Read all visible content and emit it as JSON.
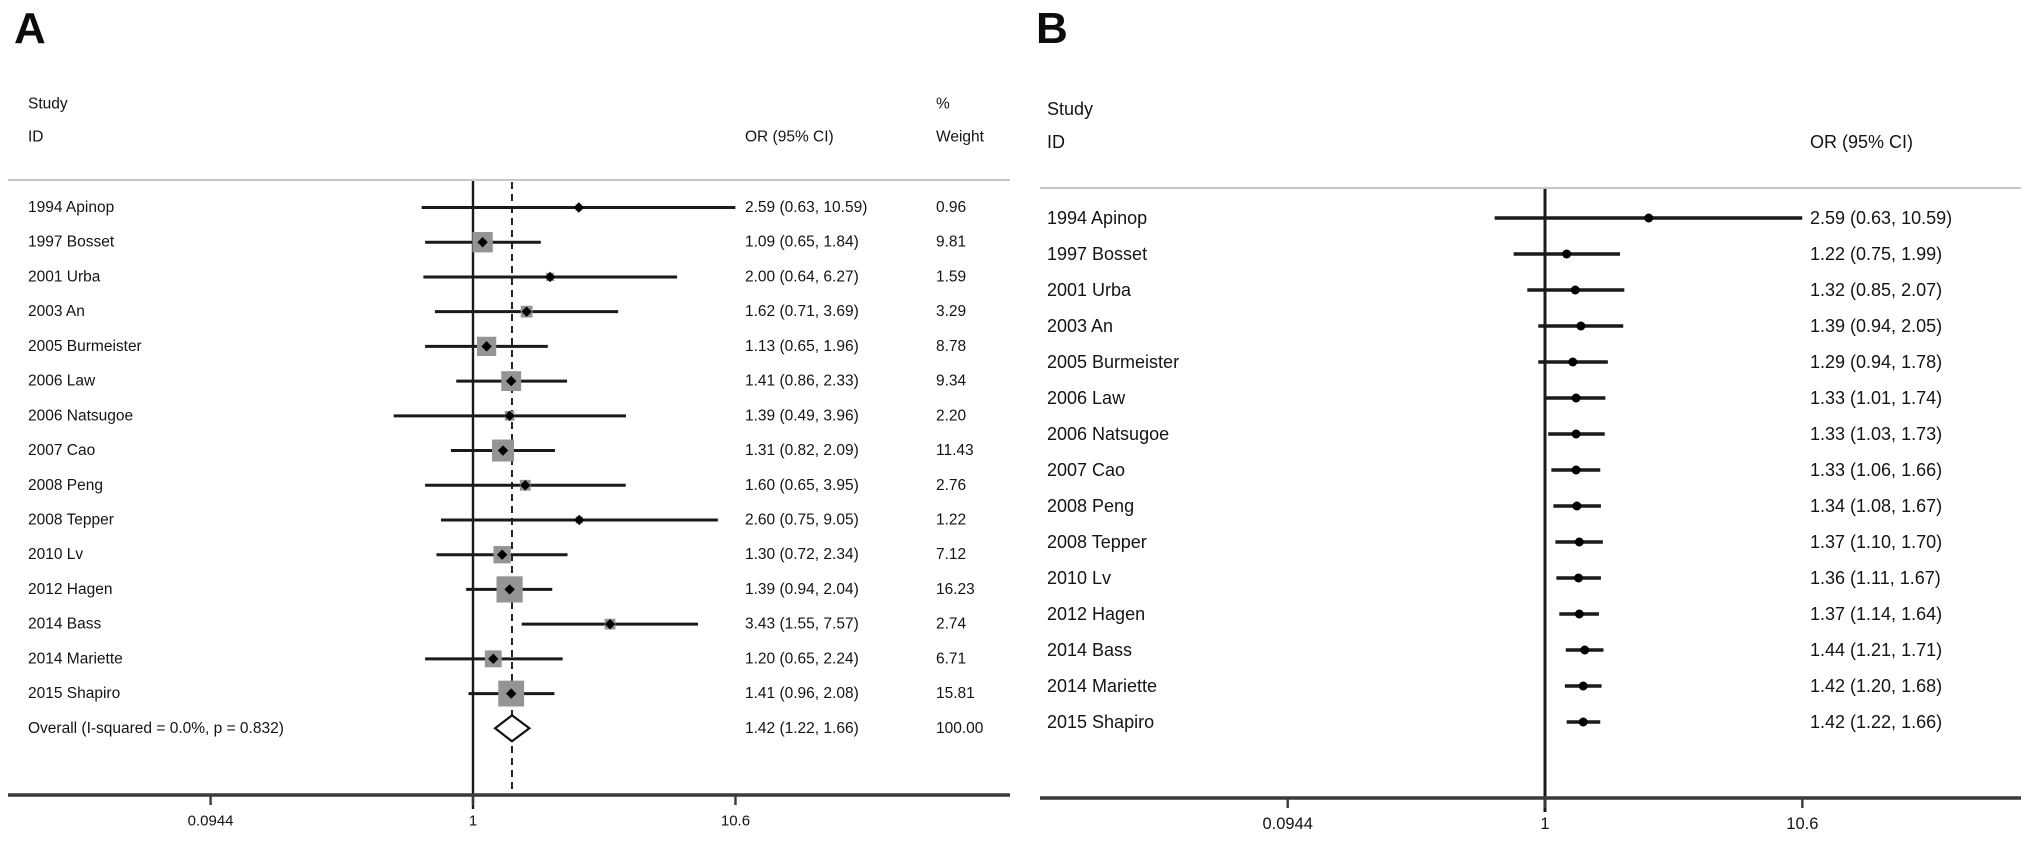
{
  "colors": {
    "background": "#ffffff",
    "text": "#141414",
    "ci_line": "#1a1a1a",
    "weight_box": "#949494",
    "point_marker": "#000000",
    "axis_line": "#3a3a3a",
    "separator_line": "#b3b3b3",
    "overall_dashed_line": "#222222",
    "diamond_fill": "#ffffff",
    "diamond_stroke": "#111111"
  },
  "chart_data": [
    {
      "type": "forest",
      "title": "A",
      "x_scale": "log",
      "x_ticks": [
        0.0944,
        1,
        10.6
      ],
      "x_tick_labels": [
        "0.0944",
        "1",
        "10.6"
      ],
      "null_line": 1,
      "overall_dashed_at": 1.42,
      "headers": {
        "study_line1": "Study",
        "study_line2": "ID",
        "or": "OR (95% CI)",
        "weight_line1": "%",
        "weight_line2": "Weight"
      },
      "studies": [
        {
          "id": "1994 Apinop",
          "or": 2.59,
          "ci_low": 0.63,
          "ci_high": 10.59,
          "or_text": "2.59 (0.63, 10.59)",
          "weight": 0.96,
          "weight_text": "0.96"
        },
        {
          "id": "1997 Bosset",
          "or": 1.09,
          "ci_low": 0.65,
          "ci_high": 1.84,
          "or_text": "1.09 (0.65, 1.84)",
          "weight": 9.81,
          "weight_text": "9.81"
        },
        {
          "id": "2001 Urba",
          "or": 2.0,
          "ci_low": 0.64,
          "ci_high": 6.27,
          "or_text": "2.00 (0.64, 6.27)",
          "weight": 1.59,
          "weight_text": "1.59"
        },
        {
          "id": "2003 An",
          "or": 1.62,
          "ci_low": 0.71,
          "ci_high": 3.69,
          "or_text": "1.62 (0.71, 3.69)",
          "weight": 3.29,
          "weight_text": "3.29"
        },
        {
          "id": "2005 Burmeister",
          "or": 1.13,
          "ci_low": 0.65,
          "ci_high": 1.96,
          "or_text": "1.13 (0.65, 1.96)",
          "weight": 8.78,
          "weight_text": "8.78"
        },
        {
          "id": "2006 Law",
          "or": 1.41,
          "ci_low": 0.86,
          "ci_high": 2.33,
          "or_text": "1.41 (0.86, 2.33)",
          "weight": 9.34,
          "weight_text": "9.34"
        },
        {
          "id": "2006 Natsugoe",
          "or": 1.39,
          "ci_low": 0.49,
          "ci_high": 3.96,
          "or_text": "1.39 (0.49, 3.96)",
          "weight": 2.2,
          "weight_text": "2.20"
        },
        {
          "id": "2007 Cao",
          "or": 1.31,
          "ci_low": 0.82,
          "ci_high": 2.09,
          "or_text": "1.31 (0.82, 2.09)",
          "weight": 11.43,
          "weight_text": "11.43"
        },
        {
          "id": "2008 Peng",
          "or": 1.6,
          "ci_low": 0.65,
          "ci_high": 3.95,
          "or_text": "1.60 (0.65, 3.95)",
          "weight": 2.76,
          "weight_text": "2.76"
        },
        {
          "id": "2008 Tepper",
          "or": 2.6,
          "ci_low": 0.75,
          "ci_high": 9.05,
          "or_text": "2.60 (0.75, 9.05)",
          "weight": 1.22,
          "weight_text": "1.22"
        },
        {
          "id": "2010 Lv",
          "or": 1.3,
          "ci_low": 0.72,
          "ci_high": 2.34,
          "or_text": "1.30 (0.72, 2.34)",
          "weight": 7.12,
          "weight_text": "7.12"
        },
        {
          "id": "2012 Hagen",
          "or": 1.39,
          "ci_low": 0.94,
          "ci_high": 2.04,
          "or_text": "1.39 (0.94, 2.04)",
          "weight": 16.23,
          "weight_text": "16.23"
        },
        {
          "id": "2014 Bass",
          "or": 3.43,
          "ci_low": 1.55,
          "ci_high": 7.57,
          "or_text": "3.43 (1.55, 7.57)",
          "weight": 2.74,
          "weight_text": "2.74"
        },
        {
          "id": "2014 Mariette",
          "or": 1.2,
          "ci_low": 0.65,
          "ci_high": 2.24,
          "or_text": "1.20 (0.65, 2.24)",
          "weight": 6.71,
          "weight_text": "6.71"
        },
        {
          "id": "2015 Shapiro",
          "or": 1.41,
          "ci_low": 0.96,
          "ci_high": 2.08,
          "or_text": "1.41 (0.96, 2.08)",
          "weight": 15.81,
          "weight_text": "15.81"
        }
      ],
      "overall": {
        "id": "Overall  (I-squared = 0.0%, p = 0.832)",
        "or": 1.42,
        "ci_low": 1.22,
        "ci_high": 1.66,
        "or_text": "1.42 (1.22, 1.66)",
        "weight_text": "100.00"
      }
    },
    {
      "type": "forest",
      "title": "B",
      "x_scale": "log",
      "x_ticks": [
        0.0944,
        1,
        10.6
      ],
      "x_tick_labels": [
        "0.0944",
        "1",
        "10.6"
      ],
      "null_line": 1,
      "headers": {
        "study_line1": "Study",
        "study_line2": "ID",
        "or": "OR (95% CI)"
      },
      "studies": [
        {
          "id": "1994 Apinop",
          "or": 2.59,
          "ci_low": 0.63,
          "ci_high": 10.59,
          "or_text": "2.59 (0.63, 10.59)"
        },
        {
          "id": "1997 Bosset",
          "or": 1.22,
          "ci_low": 0.75,
          "ci_high": 1.99,
          "or_text": "1.22 (0.75, 1.99)"
        },
        {
          "id": "2001 Urba",
          "or": 1.32,
          "ci_low": 0.85,
          "ci_high": 2.07,
          "or_text": "1.32 (0.85, 2.07)"
        },
        {
          "id": "2003 An",
          "or": 1.39,
          "ci_low": 0.94,
          "ci_high": 2.05,
          "or_text": "1.39 (0.94, 2.05)"
        },
        {
          "id": "2005 Burmeister",
          "or": 1.29,
          "ci_low": 0.94,
          "ci_high": 1.78,
          "or_text": "1.29 (0.94, 1.78)"
        },
        {
          "id": "2006 Law",
          "or": 1.33,
          "ci_low": 1.01,
          "ci_high": 1.74,
          "or_text": "1.33 (1.01, 1.74)"
        },
        {
          "id": "2006 Natsugoe",
          "or": 1.33,
          "ci_low": 1.03,
          "ci_high": 1.73,
          "or_text": "1.33 (1.03, 1.73)"
        },
        {
          "id": "2007 Cao",
          "or": 1.33,
          "ci_low": 1.06,
          "ci_high": 1.66,
          "or_text": "1.33 (1.06, 1.66)"
        },
        {
          "id": "2008 Peng",
          "or": 1.34,
          "ci_low": 1.08,
          "ci_high": 1.67,
          "or_text": "1.34 (1.08, 1.67)"
        },
        {
          "id": "2008 Tepper",
          "or": 1.37,
          "ci_low": 1.1,
          "ci_high": 1.7,
          "or_text": "1.37 (1.10, 1.70)"
        },
        {
          "id": "2010 Lv",
          "or": 1.36,
          "ci_low": 1.11,
          "ci_high": 1.67,
          "or_text": "1.36 (1.11, 1.67)"
        },
        {
          "id": "2012 Hagen",
          "or": 1.37,
          "ci_low": 1.14,
          "ci_high": 1.64,
          "or_text": "1.37 (1.14, 1.64)"
        },
        {
          "id": "2014 Bass",
          "or": 1.44,
          "ci_low": 1.21,
          "ci_high": 1.71,
          "or_text": "1.44 (1.21, 1.71)"
        },
        {
          "id": "2014 Mariette",
          "or": 1.42,
          "ci_low": 1.2,
          "ci_high": 1.68,
          "or_text": "1.42 (1.20, 1.68)"
        },
        {
          "id": "2015 Shapiro",
          "or": 1.42,
          "ci_low": 1.22,
          "ci_high": 1.66,
          "or_text": "1.42 (1.22, 1.66)"
        }
      ]
    }
  ]
}
